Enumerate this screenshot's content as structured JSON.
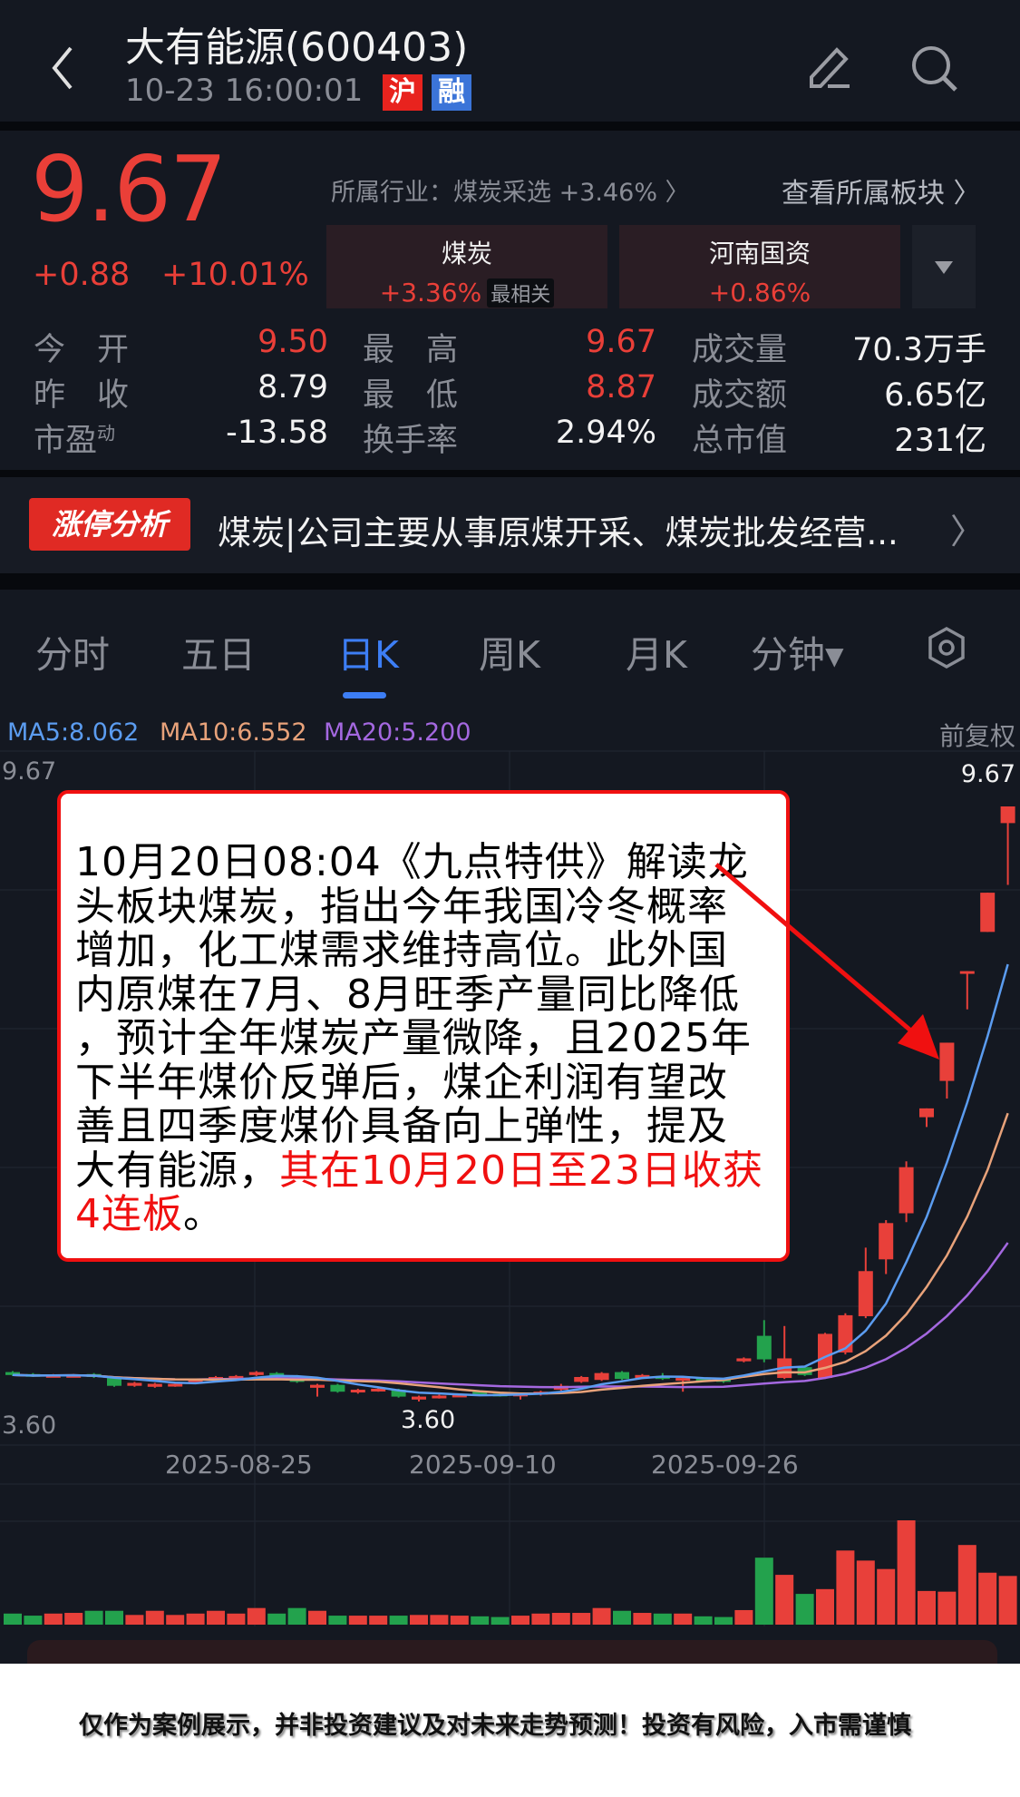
{
  "header": {
    "title": "大有能源(600403)",
    "time": "10-23 16:00:01",
    "badge_sh": "沪",
    "badge_margin": "融"
  },
  "quote": {
    "price": "9.67",
    "change": "+0.88",
    "change_pct": "+10.01%",
    "industry": "所属行业：煤炭采选 +3.46% 〉",
    "view_sectors": "查看所属板块 〉",
    "sectors": [
      {
        "name": "煤炭",
        "pct": "+3.36%",
        "tag": "最相关"
      },
      {
        "name": "河南国资",
        "pct": "+0.86%"
      }
    ],
    "stats": [
      {
        "label": "今　开",
        "value": "9.50",
        "color": "red"
      },
      {
        "label": "最　高",
        "value": "9.67",
        "color": "red"
      },
      {
        "label": "成交量",
        "value": "70.3万手",
        "color": "white"
      },
      {
        "label": "昨　收",
        "value": "8.79",
        "color": "white"
      },
      {
        "label": "最　低",
        "value": "8.87",
        "color": "red"
      },
      {
        "label": "成交额",
        "value": "6.65亿",
        "color": "white"
      },
      {
        "label": "市盈",
        "label_sup": "动",
        "value": "-13.58",
        "color": "white"
      },
      {
        "label": "换手率",
        "value": "2.94%",
        "color": "white"
      },
      {
        "label": "总市值",
        "value": "231亿",
        "color": "white"
      }
    ]
  },
  "banner": {
    "badge": "涨停分析",
    "text": "煤炭|公司主要从事原煤开采、煤炭批发经营..."
  },
  "tabs": [
    {
      "label": "分时"
    },
    {
      "label": "五日"
    },
    {
      "label": "日K",
      "active": true
    },
    {
      "label": "周K"
    },
    {
      "label": "月K"
    },
    {
      "label": "分钟▾"
    }
  ],
  "ma": {
    "ma5": "MA5:8.062",
    "ma10": "MA10:6.552",
    "ma20": "MA20:5.200",
    "adjust": "前复权"
  },
  "colors": {
    "up": "#e8403a",
    "down": "#23a24d",
    "ma5": "#5b9cf0",
    "ma10": "#e8a27a",
    "ma20": "#a468e0",
    "accent": "#3d7ef5"
  },
  "chart_data": {
    "type": "candlestick",
    "ylim": [
      3.6,
      9.67
    ],
    "price_labels": {
      "top_left": "9.67",
      "top_right": "9.67",
      "bottom_left": "3.60",
      "low_marker": "3.60"
    },
    "x_ticks": [
      "2025-08-25",
      "2025-09-10",
      "2025-09-26"
    ],
    "open": [
      3.9,
      3.88,
      3.86,
      3.86,
      3.88,
      3.84,
      3.76,
      3.75,
      3.76,
      3.8,
      3.83,
      3.85,
      3.87,
      3.89,
      3.86,
      3.74,
      3.77,
      3.7,
      3.71,
      3.72,
      3.62,
      3.64,
      3.66,
      3.7,
      3.68,
      3.66,
      3.67,
      3.72,
      3.8,
      3.82,
      3.9,
      3.84,
      3.86,
      3.82,
      3.84,
      3.83,
      4.01,
      4.27,
      3.84,
      3.95,
      3.84,
      4.1,
      4.47,
      5.05,
      5.52,
      6.5,
      6.87,
      7.99,
      8.39,
      9.5
    ],
    "high": [
      3.91,
      3.89,
      3.88,
      3.88,
      3.89,
      3.85,
      3.8,
      3.79,
      3.79,
      3.83,
      3.86,
      3.87,
      3.91,
      3.9,
      3.87,
      3.78,
      3.78,
      3.73,
      3.74,
      3.73,
      3.66,
      3.67,
      3.68,
      3.71,
      3.69,
      3.69,
      3.71,
      3.78,
      3.86,
      3.9,
      3.91,
      3.88,
      3.89,
      3.85,
      3.85,
      3.84,
      4.05,
      4.43,
      4.37,
      3.96,
      4.3,
      4.5,
      5.17,
      5.45,
      6.05,
      6.59,
      7.26,
      7.99,
      8.79,
      9.67
    ],
    "low": [
      3.86,
      3.85,
      3.85,
      3.85,
      3.84,
      3.75,
      3.75,
      3.74,
      3.75,
      3.79,
      3.82,
      3.84,
      3.86,
      3.86,
      3.79,
      3.65,
      3.69,
      3.68,
      3.7,
      3.64,
      3.6,
      3.63,
      3.65,
      3.68,
      3.65,
      3.62,
      3.66,
      3.71,
      3.79,
      3.81,
      3.82,
      3.83,
      3.82,
      3.7,
      3.81,
      3.79,
      4.0,
      4.0,
      3.83,
      3.86,
      3.83,
      4.08,
      4.45,
      4.9,
      5.43,
      6.4,
      6.69,
      7.6,
      8.39,
      8.87
    ],
    "close": [
      3.87,
      3.86,
      3.87,
      3.87,
      3.85,
      3.76,
      3.79,
      3.78,
      3.78,
      3.82,
      3.85,
      3.86,
      3.9,
      3.88,
      3.8,
      3.77,
      3.7,
      3.72,
      3.73,
      3.65,
      3.65,
      3.66,
      3.67,
      3.69,
      3.66,
      3.68,
      3.7,
      3.76,
      3.85,
      3.89,
      3.83,
      3.87,
      3.83,
      3.84,
      3.82,
      3.8,
      4.04,
      4.03,
      4.04,
      3.87,
      4.29,
      4.48,
      4.93,
      5.42,
      5.99,
      6.59,
      7.26,
      7.99,
      8.79,
      9.67
    ],
    "volume_wan": [
      16,
      13,
      16,
      17,
      20,
      20,
      14,
      20,
      14,
      16,
      20,
      16,
      24,
      16,
      24,
      20,
      13,
      13,
      13,
      13,
      14,
      14,
      13,
      12,
      11,
      13,
      16,
      17,
      17,
      24,
      20,
      17,
      16,
      16,
      12,
      11,
      21,
      96.7,
      71.9,
      44.4,
      51.3,
      107,
      92.5,
      80.3,
      150.6,
      48.6,
      47.6,
      115,
      75,
      70.3
    ]
  },
  "annotation": {
    "lines": [
      [
        {
          "t": "10月20日08:04《九点特供》解读龙"
        }
      ],
      [
        {
          "t": "头板块煤炭，指出今年我国冷冬概率"
        }
      ],
      [
        {
          "t": "增加，化工煤需求维持高位。此外国"
        }
      ],
      [
        {
          "t": "内原煤在7月、8月旺季产量同比降低"
        }
      ],
      [
        {
          "t": "，预计全年煤炭产量微降，且2025年"
        }
      ],
      [
        {
          "t": "下半年煤价反弹后，煤企利润有望改"
        }
      ],
      [
        {
          "t": "善且四季度煤价具备向上弹性，提及"
        }
      ],
      [
        {
          "t": "大有能源，"
        },
        {
          "t": "其在10月20日至23日收获",
          "red": true
        }
      ],
      [
        {
          "t": "4连板",
          "red": true
        },
        {
          "t": "。"
        }
      ]
    ]
  },
  "disclaimer": "仅作为案例展示，并非投资建议及对未来走势预测！投资有风险，入市需谨慎"
}
